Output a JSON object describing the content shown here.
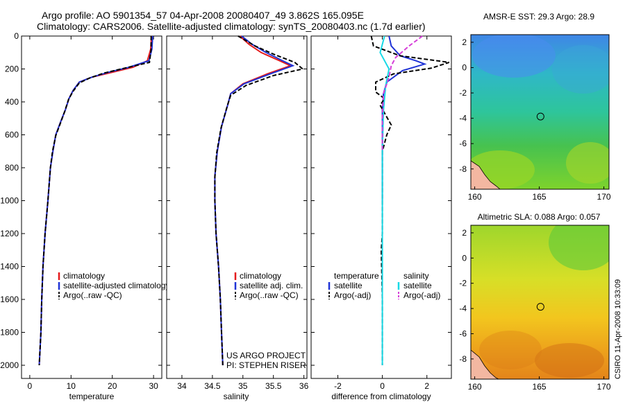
{
  "title": {
    "line1": "Argo profile: AO 5901354_57 04-Apr-2008 20080407_49 3.862S 165.095E",
    "line2": "Climatology: CARS2006. Satellite-adjusted climatology: synTS_20080403.nc (1.7d earlier)"
  },
  "side_label": "CSIRO 11-Apr-2008 10:33:09",
  "project_note": [
    "US ARGO PROJECT",
    "PI: STEPHEN RISER"
  ],
  "colors": {
    "climatology": "#e41a1c",
    "satellite": "#1f33d6",
    "argo": "#000000",
    "sat_salinity": "#17d9e6",
    "argo_salinity": "#d63fd9"
  },
  "chart_data": [
    {
      "type": "line",
      "xlabel": "temperature",
      "ylabel": "",
      "xlim": [
        -2,
        32
      ],
      "ylim": [
        0,
        2080
      ],
      "y_reversed": true,
      "xticks": [
        0,
        10,
        20,
        30
      ],
      "yticks": [
        0,
        200,
        400,
        600,
        800,
        1000,
        1200,
        1400,
        1600,
        1800,
        2000
      ],
      "legend": [
        "climatology",
        "satellite-adjusted climatology",
        "Argo(..raw -QC)"
      ],
      "series": [
        {
          "name": "climatology",
          "color": "#e41a1c",
          "dash": "",
          "x": [
            29.5,
            29.3,
            28.5,
            25,
            20,
            15,
            12,
            10.5,
            9.5,
            8.6,
            7.5,
            6.3,
            5.6,
            5,
            4.4,
            3.7,
            3.2,
            2.9,
            2.7,
            2.5,
            2.3
          ],
          "y": [
            0,
            80,
            150,
            190,
            220,
            250,
            280,
            330,
            380,
            450,
            520,
            600,
            700,
            800,
            1000,
            1200,
            1400,
            1600,
            1800,
            1900,
            2000
          ]
        },
        {
          "name": "satellite-adjusted climatology",
          "color": "#1f33d6",
          "dash": "",
          "x": [
            29.8,
            29.6,
            28.9,
            24,
            19,
            15,
            12,
            10.5,
            9.5,
            8.6,
            7.5,
            6.3,
            5.6,
            5,
            4.4,
            3.7,
            3.2,
            2.9,
            2.7,
            2.5,
            2.3
          ],
          "y": [
            0,
            80,
            150,
            190,
            220,
            250,
            280,
            330,
            380,
            450,
            520,
            600,
            700,
            800,
            1000,
            1200,
            1400,
            1600,
            1800,
            1900,
            2000
          ]
        },
        {
          "name": "Argo(..raw -QC)",
          "color": "#000000",
          "dash": "6,3",
          "x": [
            29.4,
            29.4,
            29,
            23,
            18,
            14.5,
            12,
            10.5,
            9.4,
            8.5,
            7.5,
            6.3,
            5.5,
            5,
            4.4,
            3.7,
            3.2,
            2.9,
            2.7,
            2.5,
            2.3
          ],
          "y": [
            0,
            80,
            160,
            195,
            225,
            255,
            285,
            335,
            385,
            455,
            525,
            605,
            700,
            800,
            1000,
            1200,
            1400,
            1600,
            1800,
            1900,
            2000
          ]
        }
      ]
    },
    {
      "type": "line",
      "xlabel": "salinity",
      "ylabel": "",
      "xlim": [
        33.75,
        36.05
      ],
      "ylim": [
        0,
        2080
      ],
      "y_reversed": true,
      "xticks": [
        34,
        34.5,
        35,
        35.5,
        36
      ],
      "legend": [
        "climatology",
        "satellite adj. clim.",
        "Argo(..raw -QC)"
      ],
      "series": [
        {
          "name": "climatology",
          "color": "#e41a1c",
          "dash": "",
          "x": [
            34.95,
            35.1,
            35.3,
            35.6,
            35.78,
            35.4,
            35.0,
            34.8,
            34.75,
            34.65,
            34.58,
            34.54,
            34.54,
            34.56,
            34.6,
            34.63,
            34.65,
            34.67
          ],
          "y": [
            0,
            50,
            100,
            150,
            180,
            230,
            290,
            350,
            420,
            550,
            700,
            850,
            1000,
            1200,
            1400,
            1600,
            1800,
            2000
          ]
        },
        {
          "name": "satellite adj. clim.",
          "color": "#1f33d6",
          "dash": "",
          "x": [
            34.98,
            35.15,
            35.38,
            35.65,
            35.82,
            35.45,
            35.02,
            34.8,
            34.75,
            34.65,
            34.58,
            34.54,
            34.54,
            34.56,
            34.6,
            34.63,
            34.65,
            34.67
          ],
          "y": [
            0,
            50,
            100,
            150,
            180,
            230,
            290,
            350,
            420,
            550,
            700,
            850,
            1000,
            1200,
            1400,
            1600,
            1800,
            2000
          ]
        },
        {
          "name": "Argo(..raw -QC)",
          "color": "#000000",
          "dash": "6,3",
          "x": [
            34.92,
            35.2,
            35.5,
            35.85,
            35.98,
            35.5,
            35.05,
            34.8,
            34.74,
            34.64,
            34.57,
            34.54,
            34.54,
            34.56,
            34.6,
            34.63,
            34.65,
            34.67
          ],
          "y": [
            0,
            60,
            110,
            160,
            200,
            240,
            300,
            360,
            430,
            560,
            710,
            860,
            1000,
            1200,
            1400,
            1600,
            1800,
            2000
          ]
        }
      ]
    },
    {
      "type": "line",
      "xlabel": "difference from climatology",
      "ylabel": "",
      "xlim": [
        -3.2,
        3.1
      ],
      "ylim": [
        0,
        2080
      ],
      "y_reversed": true,
      "xticks": [
        -2,
        0,
        2
      ],
      "legend": [
        "temperature",
        "satellite",
        "Argo(-adj)",
        "salinity",
        "satellite",
        "Argo(-adj)"
      ],
      "series": [
        {
          "name": "temperature satellite",
          "color": "#1f33d6",
          "dash": "",
          "x": [
            0.3,
            0.4,
            0.8,
            1.5,
            1.9,
            0.9,
            0.2,
            0.05,
            0,
            0,
            0
          ],
          "y": [
            0,
            60,
            120,
            150,
            170,
            210,
            280,
            350,
            450,
            600,
            1000
          ]
        },
        {
          "name": "temperature Argo(-adj)",
          "color": "#000000",
          "dash": "6,3",
          "x": [
            -0.5,
            -0.4,
            0.8,
            3.0,
            2.2,
            0.5,
            -0.3,
            -0.3,
            0.1,
            -0.1,
            0.4,
            0.2,
            0,
            0,
            0,
            -0.05,
            0,
            0
          ],
          "y": [
            0,
            60,
            120,
            160,
            195,
            230,
            280,
            340,
            380,
            420,
            540,
            600,
            700,
            900,
            1200,
            1300,
            1600,
            2000
          ]
        },
        {
          "name": "salinity satellite",
          "color": "#17d9e6",
          "dash": "",
          "x": [
            0.1,
            -0.1,
            0.3,
            0.15,
            0.05,
            0,
            0,
            0
          ],
          "y": [
            0,
            100,
            200,
            300,
            450,
            700,
            1400,
            2000
          ]
        },
        {
          "name": "salinity Argo(-adj)",
          "color": "#d63fd9",
          "dash": "6,3",
          "x": [
            1.8,
            1.2,
            0.6,
            0.4,
            0.3,
            0.05,
            0,
            0
          ],
          "y": [
            0,
            60,
            130,
            180,
            250,
            350,
            500,
            700
          ]
        }
      ]
    },
    {
      "type": "heatmap",
      "title": "AMSR-E SST: 29.3 Argo: 28.9",
      "xlim": [
        159.7,
        170.4
      ],
      "ylim": [
        -9.6,
        2.6
      ],
      "xticks": [
        160,
        165,
        170
      ],
      "yticks": [
        -8,
        -6,
        -4,
        -2,
        0,
        2
      ],
      "marker": {
        "x": 165.095,
        "y": -3.862
      }
    },
    {
      "type": "heatmap",
      "title": "Altimetric SLA: 0.088 Argo: 0.057",
      "xlim": [
        159.7,
        170.4
      ],
      "ylim": [
        -9.6,
        2.6
      ],
      "xticks": [
        160,
        165,
        170
      ],
      "yticks": [
        -8,
        -6,
        -4,
        -2,
        0,
        2
      ],
      "marker": {
        "x": 165.095,
        "y": -3.862
      }
    }
  ]
}
